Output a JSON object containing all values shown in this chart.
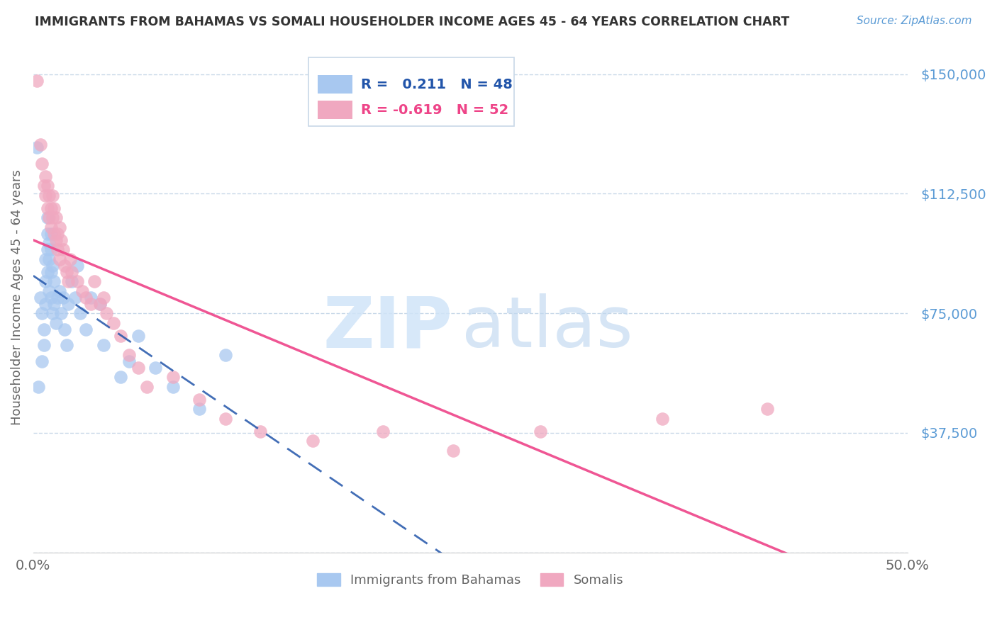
{
  "title": "IMMIGRANTS FROM BAHAMAS VS SOMALI HOUSEHOLDER INCOME AGES 45 - 64 YEARS CORRELATION CHART",
  "source": "Source: ZipAtlas.com",
  "ylabel": "Householder Income Ages 45 - 64 years",
  "y_label_color": "#5b9bd5",
  "x_range": [
    0,
    0.5
  ],
  "y_range": [
    0,
    160000
  ],
  "ytick_values": [
    37500,
    75000,
    112500,
    150000
  ],
  "bahamas_R": 0.211,
  "bahamas_N": 48,
  "somali_R": -0.619,
  "somali_N": 52,
  "bahamas_color": "#a8c8f0",
  "somali_color": "#f0a8c0",
  "bahamas_line_color": "#2255aa",
  "somali_line_color": "#ee4488",
  "watermark_zip": "ZIP",
  "watermark_atlas": "atlas",
  "watermark_color": "#dce8f8",
  "background_color": "#ffffff",
  "grid_color": "#c8d8e8",
  "title_color": "#333333",
  "source_color": "#5b9bd5",
  "axis_label_color": "#666666",
  "tick_label_color": "#666666",
  "bahamas_x": [
    0.002,
    0.003,
    0.004,
    0.005,
    0.005,
    0.006,
    0.006,
    0.007,
    0.007,
    0.007,
    0.008,
    0.008,
    0.008,
    0.008,
    0.009,
    0.009,
    0.009,
    0.01,
    0.01,
    0.01,
    0.01,
    0.011,
    0.011,
    0.012,
    0.012,
    0.013,
    0.014,
    0.015,
    0.016,
    0.017,
    0.018,
    0.019,
    0.02,
    0.022,
    0.024,
    0.025,
    0.027,
    0.03,
    0.033,
    0.038,
    0.04,
    0.05,
    0.055,
    0.06,
    0.07,
    0.08,
    0.095,
    0.11
  ],
  "bahamas_y": [
    127000,
    52000,
    80000,
    75000,
    60000,
    70000,
    65000,
    85000,
    78000,
    92000,
    100000,
    95000,
    88000,
    105000,
    82000,
    97000,
    92000,
    88000,
    95000,
    100000,
    80000,
    90000,
    75000,
    85000,
    78000,
    72000,
    80000,
    82000,
    75000,
    80000,
    70000,
    65000,
    78000,
    85000,
    80000,
    90000,
    75000,
    70000,
    80000,
    78000,
    65000,
    55000,
    60000,
    68000,
    58000,
    52000,
    45000,
    62000
  ],
  "somali_x": [
    0.002,
    0.004,
    0.005,
    0.006,
    0.007,
    0.007,
    0.008,
    0.008,
    0.009,
    0.009,
    0.01,
    0.01,
    0.011,
    0.011,
    0.012,
    0.012,
    0.013,
    0.013,
    0.014,
    0.014,
    0.015,
    0.015,
    0.016,
    0.017,
    0.018,
    0.019,
    0.02,
    0.021,
    0.022,
    0.025,
    0.028,
    0.03,
    0.033,
    0.035,
    0.038,
    0.04,
    0.042,
    0.046,
    0.05,
    0.055,
    0.06,
    0.065,
    0.08,
    0.095,
    0.11,
    0.13,
    0.16,
    0.2,
    0.24,
    0.29,
    0.36,
    0.42
  ],
  "somali_y": [
    148000,
    128000,
    122000,
    115000,
    112000,
    118000,
    108000,
    115000,
    105000,
    112000,
    108000,
    102000,
    112000,
    105000,
    100000,
    108000,
    98000,
    105000,
    100000,
    95000,
    92000,
    102000,
    98000,
    95000,
    90000,
    88000,
    85000,
    92000,
    88000,
    85000,
    82000,
    80000,
    78000,
    85000,
    78000,
    80000,
    75000,
    72000,
    68000,
    62000,
    58000,
    52000,
    55000,
    48000,
    42000,
    38000,
    35000,
    38000,
    32000,
    38000,
    42000,
    45000
  ]
}
